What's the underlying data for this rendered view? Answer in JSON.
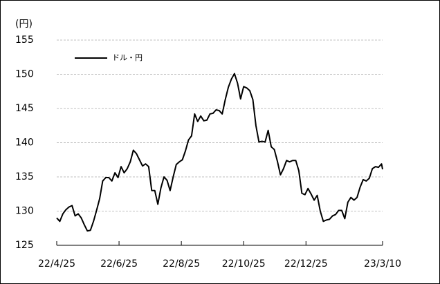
{
  "chart_data": {
    "type": "line",
    "y_label": "(円)",
    "x": [
      "2022-04-25",
      "2022-04-28",
      "2022-05-01",
      "2022-05-04",
      "2022-05-07",
      "2022-05-10",
      "2022-05-13",
      "2022-05-16",
      "2022-05-19",
      "2022-05-22",
      "2022-05-25",
      "2022-05-28",
      "2022-05-31",
      "2022-06-03",
      "2022-06-06",
      "2022-06-09",
      "2022-06-12",
      "2022-06-15",
      "2022-06-18",
      "2022-06-21",
      "2022-06-24",
      "2022-06-27",
      "2022-06-30",
      "2022-07-03",
      "2022-07-06",
      "2022-07-09",
      "2022-07-12",
      "2022-07-15",
      "2022-07-18",
      "2022-07-21",
      "2022-07-24",
      "2022-07-27",
      "2022-07-30",
      "2022-08-02",
      "2022-08-05",
      "2022-08-08",
      "2022-08-11",
      "2022-08-14",
      "2022-08-17",
      "2022-08-20",
      "2022-08-23",
      "2022-08-26",
      "2022-08-29",
      "2022-09-01",
      "2022-09-04",
      "2022-09-07",
      "2022-09-10",
      "2022-09-13",
      "2022-09-16",
      "2022-09-19",
      "2022-09-22",
      "2022-09-25",
      "2022-09-28",
      "2022-10-01",
      "2022-10-04",
      "2022-10-07",
      "2022-10-10",
      "2022-10-13",
      "2022-10-16",
      "2022-10-19",
      "2022-10-22",
      "2022-10-25",
      "2022-10-28",
      "2022-10-31",
      "2022-11-03",
      "2022-11-06",
      "2022-11-09",
      "2022-11-12",
      "2022-11-15",
      "2022-11-18",
      "2022-11-21",
      "2022-11-24",
      "2022-11-27",
      "2022-11-30",
      "2022-12-03",
      "2022-12-06",
      "2022-12-09",
      "2022-12-12",
      "2022-12-15",
      "2022-12-18",
      "2022-12-21",
      "2022-12-24",
      "2022-12-27",
      "2022-12-30",
      "2023-01-02",
      "2023-01-05",
      "2023-01-08",
      "2023-01-11",
      "2023-01-14",
      "2023-01-17",
      "2023-01-20",
      "2023-01-23",
      "2023-01-26",
      "2023-01-29",
      "2023-02-01",
      "2023-02-04",
      "2023-02-07",
      "2023-02-10",
      "2023-02-13",
      "2023-02-16",
      "2023-02-19",
      "2023-02-22",
      "2023-02-25",
      "2023-02-28",
      "2023-03-03",
      "2023-03-06",
      "2023-03-09",
      "2023-03-10"
    ],
    "series": [
      {
        "name": "ドル・円",
        "color": "#000000",
        "values": [
          129.0,
          128.5,
          129.6,
          130.2,
          130.6,
          130.8,
          129.3,
          129.6,
          129.0,
          128.0,
          127.1,
          127.2,
          128.5,
          130.1,
          131.8,
          134.4,
          134.9,
          134.9,
          134.4,
          135.6,
          134.9,
          136.5,
          135.6,
          136.2,
          137.2,
          138.9,
          138.4,
          137.5,
          136.6,
          136.9,
          136.5,
          133.0,
          133.0,
          131.0,
          133.4,
          135.0,
          134.5,
          133.0,
          135.0,
          136.8,
          137.2,
          137.5,
          138.8,
          140.4,
          141.0,
          144.2,
          143.1,
          143.9,
          143.2,
          143.3,
          144.2,
          144.3,
          144.8,
          144.7,
          144.2,
          146.3,
          148.1,
          149.3,
          150.1,
          148.7,
          146.4,
          148.2,
          148.0,
          147.6,
          146.3,
          142.5,
          140.1,
          140.2,
          140.1,
          141.8,
          139.4,
          139.0,
          137.3,
          135.3,
          136.2,
          137.4,
          137.2,
          137.4,
          137.4,
          135.9,
          132.6,
          132.4,
          133.3,
          132.5,
          131.6,
          132.3,
          130.0,
          128.5,
          128.7,
          128.8,
          129.3,
          129.5,
          130.1,
          130.1,
          128.9,
          131.3,
          132.0,
          131.6,
          132.0,
          133.5,
          134.6,
          134.4,
          134.8,
          136.2,
          136.5,
          136.4,
          136.9,
          136.1
        ]
      }
    ],
    "xlim": [
      "2022-04-25",
      "2023-03-10"
    ],
    "xticks": [
      {
        "value": "2022-04-25",
        "label": "22/4/25"
      },
      {
        "value": "2022-06-25",
        "label": "22/6/25"
      },
      {
        "value": "2022-08-25",
        "label": "22/8/25"
      },
      {
        "value": "2022-10-25",
        "label": "22/10/25"
      },
      {
        "value": "2022-12-25",
        "label": "22/12/25"
      },
      {
        "value": "2023-03-10",
        "label": "23/3/10"
      }
    ],
    "ylim": [
      125,
      155
    ],
    "yticks": [
      125,
      130,
      135,
      140,
      145,
      150,
      155
    ],
    "grid": true,
    "legend": "upper left"
  }
}
